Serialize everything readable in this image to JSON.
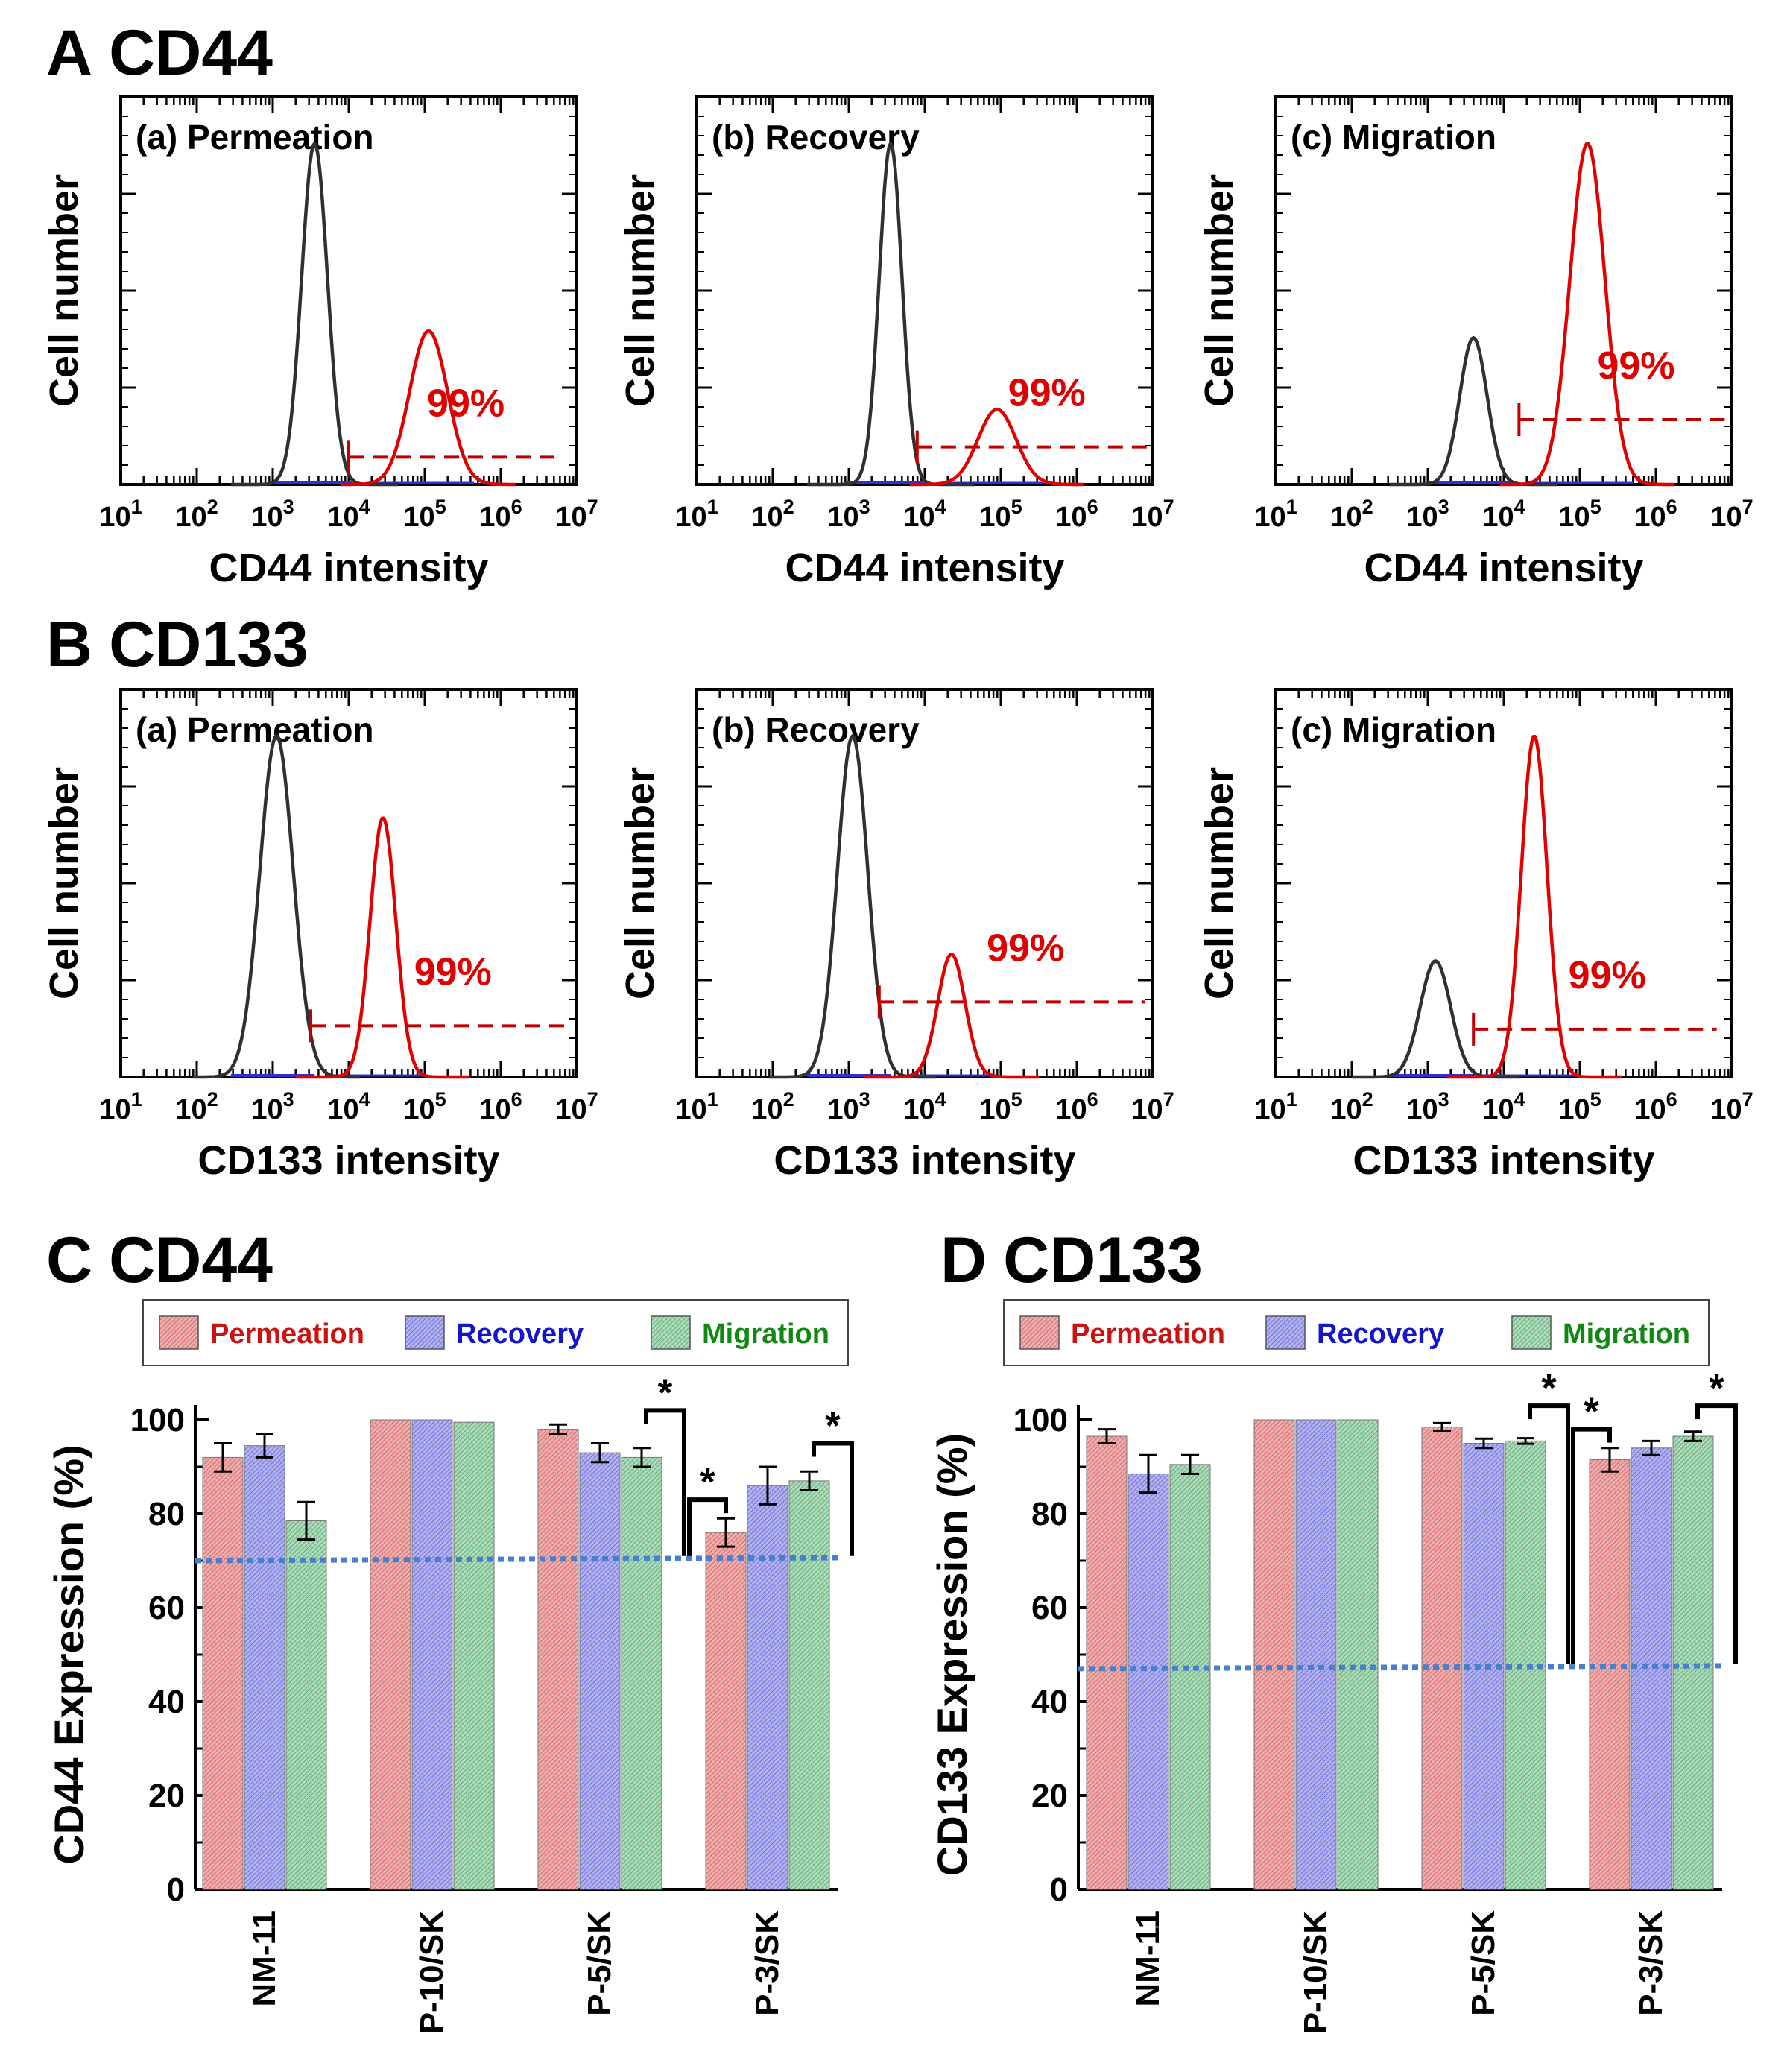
{
  "panel_A": {
    "letter": "A",
    "title": "CD44"
  },
  "panel_B": {
    "letter": "B",
    "title": "CD133"
  },
  "panel_C": {
    "letter": "C",
    "title": "CD44"
  },
  "panel_D": {
    "letter": "D",
    "title": "CD133"
  },
  "colors": {
    "negative": "#303030",
    "positive": "#e00000",
    "gate": "#c00000",
    "blue_line": "#3030d0",
    "permeation": "#e98a8a",
    "recovery": "#8c8cec",
    "migration": "#86c898",
    "threshold": "#4a7fd0",
    "legend_permeation_text": "#cc1111",
    "legend_recovery_text": "#1515cc",
    "legend_migration_text": "#118811"
  },
  "chart_data": [
    {
      "id": "A-a",
      "type": "histogram",
      "title": "(a) Permeation",
      "xlabel": "CD44 intensity",
      "ylabel": "Cell number",
      "xscale": "log",
      "xlim_log10": [
        1,
        7
      ],
      "xtick_exponents": [
        "1",
        "2",
        "3",
        "4",
        "5",
        "6",
        "7"
      ],
      "negative_peak": {
        "log10_center": 3.55,
        "width": 0.17,
        "relative_height": 1.0
      },
      "positive_peak": {
        "log10_center": 5.05,
        "width": 0.25,
        "relative_height": 0.45
      },
      "gate": {
        "start_log10": 4.0,
        "end_log10": 6.8,
        "level": 0.08
      },
      "annotation": "99%"
    },
    {
      "id": "A-b",
      "type": "histogram",
      "title": "(b) Recovery",
      "xlabel": "CD44 intensity",
      "ylabel": "Cell number",
      "xscale": "log",
      "xlim_log10": [
        1,
        7
      ],
      "xtick_exponents": [
        "1",
        "2",
        "3",
        "4",
        "5",
        "6",
        "7"
      ],
      "negative_peak": {
        "log10_center": 3.55,
        "width": 0.15,
        "relative_height": 1.0
      },
      "positive_peak": {
        "log10_center": 4.95,
        "width": 0.25,
        "relative_height": 0.22
      },
      "gate": {
        "start_log10": 3.9,
        "end_log10": 7.0,
        "level": 0.11
      },
      "annotation": "99%"
    },
    {
      "id": "A-c",
      "type": "histogram",
      "title": "(c) Migration",
      "xlabel": "CD44 intensity",
      "ylabel": "Cell number",
      "xscale": "log",
      "xlim_log10": [
        1,
        7
      ],
      "xtick_exponents": [
        "1",
        "2",
        "3",
        "4",
        "5",
        "6",
        "7"
      ],
      "negative_peak": {
        "log10_center": 3.6,
        "width": 0.18,
        "relative_height": 0.43
      },
      "positive_peak": {
        "log10_center": 5.1,
        "width": 0.23,
        "relative_height": 1.0
      },
      "gate": {
        "start_log10": 4.2,
        "end_log10": 7.0,
        "level": 0.19
      },
      "annotation": "99%"
    },
    {
      "id": "B-a",
      "type": "histogram",
      "title": "(a) Permeation",
      "xlabel": "CD133 intensity",
      "ylabel": "Cell number",
      "xscale": "log",
      "xlim_log10": [
        1,
        7
      ],
      "xtick_exponents": [
        "1",
        "2",
        "3",
        "4",
        "5",
        "6",
        "7"
      ],
      "negative_peak": {
        "log10_center": 3.05,
        "width": 0.22,
        "relative_height": 1.0
      },
      "positive_peak": {
        "log10_center": 4.45,
        "width": 0.17,
        "relative_height": 0.76
      },
      "gate": {
        "start_log10": 3.5,
        "end_log10": 6.9,
        "level": 0.15
      },
      "annotation": "99%"
    },
    {
      "id": "B-b",
      "type": "histogram",
      "title": "(b) Recovery",
      "xlabel": "CD133 intensity",
      "ylabel": "Cell number",
      "xscale": "log",
      "xlim_log10": [
        1,
        7
      ],
      "xtick_exponents": [
        "1",
        "2",
        "3",
        "4",
        "5",
        "6",
        "7"
      ],
      "negative_peak": {
        "log10_center": 3.05,
        "width": 0.2,
        "relative_height": 1.0
      },
      "positive_peak": {
        "log10_center": 4.35,
        "width": 0.18,
        "relative_height": 0.36
      },
      "gate": {
        "start_log10": 3.4,
        "end_log10": 6.9,
        "level": 0.22
      },
      "annotation": "99%"
    },
    {
      "id": "B-c",
      "type": "histogram",
      "title": "(c) Migration",
      "xlabel": "CD133 intensity",
      "ylabel": "Cell number",
      "xscale": "log",
      "xlim_log10": [
        1,
        7
      ],
      "xtick_exponents": [
        "1",
        "2",
        "3",
        "4",
        "5",
        "6",
        "7"
      ],
      "negative_peak": {
        "log10_center": 3.1,
        "width": 0.2,
        "relative_height": 0.34
      },
      "positive_peak": {
        "log10_center": 4.4,
        "width": 0.17,
        "relative_height": 1.0
      },
      "gate": {
        "start_log10": 3.6,
        "end_log10": 6.8,
        "level": 0.14
      },
      "annotation": "99%"
    },
    {
      "id": "C",
      "type": "bar",
      "ylabel": "CD44 Expression (%)",
      "ylim": [
        0,
        100
      ],
      "yticks": [
        "0",
        "20",
        "40",
        "60",
        "80",
        "100"
      ],
      "categories": [
        "NM-11",
        "P-10/SK",
        "P-5/SK",
        "P-3/SK"
      ],
      "legend": [
        "Permeation",
        "Recovery",
        "Migration"
      ],
      "threshold": 70,
      "series": [
        {
          "name": "Permeation",
          "values": [
            92,
            100,
            98,
            76
          ],
          "errors": [
            3,
            0,
            1,
            3
          ]
        },
        {
          "name": "Recovery",
          "values": [
            94.5,
            100,
            93,
            86
          ],
          "errors": [
            2.5,
            0,
            2,
            4
          ]
        },
        {
          "name": "Migration",
          "values": [
            78.5,
            99.5,
            92,
            87
          ],
          "errors": [
            4,
            0,
            2,
            2
          ]
        }
      ],
      "significance": [
        {
          "label": "*",
          "category": 2,
          "series": 2,
          "top": 102,
          "bottom": 71
        },
        {
          "label": "*",
          "category": 3,
          "series": 0,
          "top": 83,
          "bottom": 71
        },
        {
          "label": "*",
          "category": 3,
          "series": 2,
          "top": 95,
          "bottom": 71
        }
      ]
    },
    {
      "id": "D",
      "type": "bar",
      "ylabel": "CD133 Expression (%)",
      "ylim": [
        0,
        100
      ],
      "yticks": [
        "0",
        "20",
        "40",
        "60",
        "80",
        "100"
      ],
      "categories": [
        "NM-11",
        "P-10/SK",
        "P-5/SK",
        "P-3/SK"
      ],
      "legend": [
        "Permeation",
        "Recovery",
        "Migration"
      ],
      "threshold": 47,
      "series": [
        {
          "name": "Permeation",
          "values": [
            96.5,
            100,
            98.5,
            91.5
          ],
          "errors": [
            1.5,
            0,
            0.8,
            2.5
          ]
        },
        {
          "name": "Recovery",
          "values": [
            88.5,
            100,
            95,
            94
          ],
          "errors": [
            4,
            0,
            1,
            1.5
          ]
        },
        {
          "name": "Migration",
          "values": [
            90.5,
            100,
            95.5,
            96.5
          ],
          "errors": [
            2,
            0,
            0.6,
            1
          ]
        }
      ],
      "significance": [
        {
          "label": "*",
          "category": 2,
          "series": 2,
          "top": 103,
          "bottom": 48
        },
        {
          "label": "*",
          "category": 3,
          "series": 0,
          "top": 98,
          "bottom": 48
        },
        {
          "label": "*",
          "category": 3,
          "series": 2,
          "top": 103,
          "bottom": 48
        }
      ]
    }
  ]
}
